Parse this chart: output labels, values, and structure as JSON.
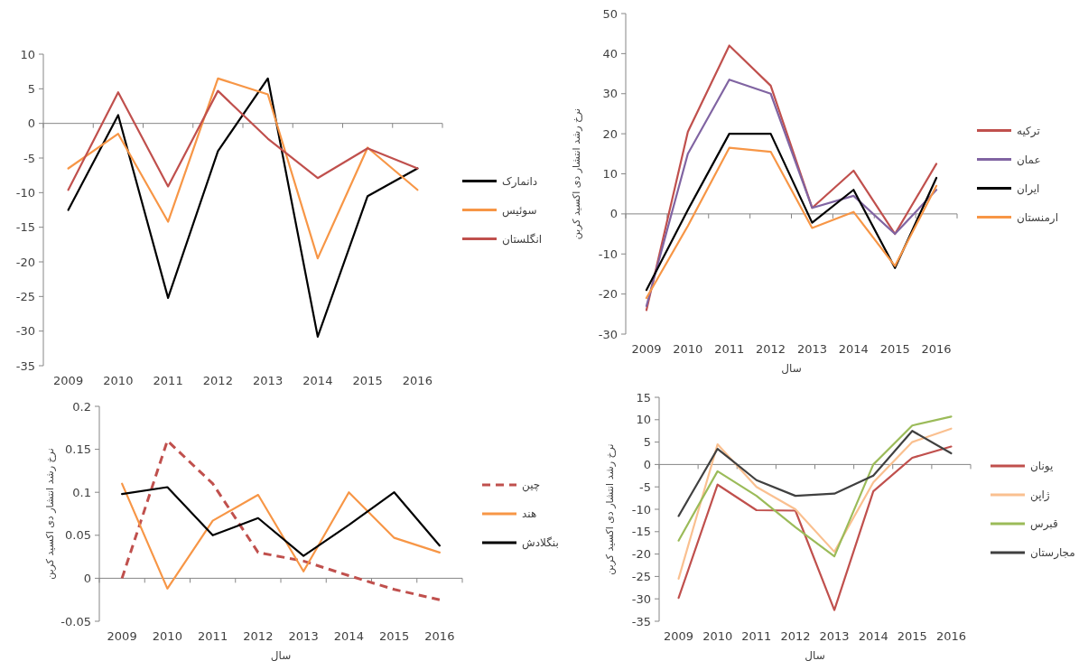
{
  "chart_data": [
    {
      "type": "line",
      "categories": [
        "2009",
        "2010",
        "2011",
        "2012",
        "2013",
        "2014",
        "2015",
        "2016"
      ],
      "ylim": [
        -35,
        10
      ],
      "yticks": [
        -35,
        -30,
        -25,
        -20,
        -15,
        -10,
        -5,
        0,
        5,
        10
      ],
      "legend": "right",
      "series": [
        {
          "name": "دانمارک",
          "color": "#000000",
          "values": [
            -12.5,
            1.2,
            -25.2,
            -4,
            6.5,
            -30.8,
            -10.5,
            -6.5
          ]
        },
        {
          "name": "سوئیس",
          "color": "#f79646",
          "values": [
            -6.5,
            -1.5,
            -14.2,
            6.5,
            4.2,
            -19.5,
            -3.5,
            -9.6
          ]
        },
        {
          "name": "انگلستان",
          "color": "#c0504d",
          "values": [
            -9.6,
            4.5,
            -9.1,
            4.7,
            -2.2,
            -7.9,
            -3.6,
            -6.5
          ]
        }
      ]
    },
    {
      "type": "line",
      "categories": [
        "2009",
        "2010",
        "2011",
        "2012",
        "2013",
        "2014",
        "2015",
        "2016"
      ],
      "xlabel": "سال",
      "ylabel": "نرخ رشد انتشار دی اکسید کربن",
      "ylim": [
        -30,
        50
      ],
      "yticks": [
        -30,
        -20,
        -10,
        0,
        10,
        20,
        30,
        40,
        50
      ],
      "legend": "right",
      "series": [
        {
          "name": "ترکیه",
          "color": "#c0504d",
          "values": [
            -24,
            20.5,
            42,
            32,
            1.5,
            10.8,
            -5,
            12.5
          ]
        },
        {
          "name": "عمان",
          "color": "#8064a2",
          "values": [
            -23,
            15,
            33.5,
            30,
            1.5,
            4.5,
            -5,
            6
          ]
        },
        {
          "name": "ایران",
          "color": "#000000",
          "values": [
            -19,
            1,
            20,
            20,
            -2.2,
            6,
            -13.5,
            9
          ]
        },
        {
          "name": "ارمنستان",
          "color": "#f79646",
          "values": [
            -21,
            -3,
            16.5,
            15.5,
            -3.5,
            0.5,
            -13,
            7
          ]
        }
      ]
    },
    {
      "type": "line",
      "categories": [
        "2009",
        "2010",
        "2011",
        "2012",
        "2013",
        "2014",
        "2015",
        "2016"
      ],
      "xlabel": "سال",
      "ylabel": "نرخ رشد انتشار دی اکسید کربن",
      "ylim": [
        -0.05,
        0.2
      ],
      "yticks": [
        -0.05,
        0,
        0.05,
        0.1,
        0.15,
        0.2
      ],
      "legend": "right",
      "series": [
        {
          "name": "چین",
          "color": "#c0504d",
          "line_style": "dashed",
          "values": [
            0,
            0.16,
            0.11,
            0.03,
            0.02,
            0.003,
            -0.013,
            -0.025
          ]
        },
        {
          "name": "هند",
          "color": "#f79646",
          "values": [
            0.11,
            -0.012,
            0.067,
            0.097,
            0.008,
            0.1,
            0.047,
            0.03
          ]
        },
        {
          "name": "بنگلادش",
          "color": "#000000",
          "values": [
            0.098,
            0.106,
            0.05,
            0.07,
            0.026,
            0.062,
            0.1,
            0.038
          ]
        }
      ]
    },
    {
      "type": "line",
      "categories": [
        "2009",
        "2010",
        "2011",
        "2012",
        "2013",
        "2014",
        "2015",
        "2016"
      ],
      "xlabel": "سال",
      "ylabel": "نرخ رشد انتشار دی اکسید کربن",
      "ylim": [
        -35,
        15
      ],
      "yticks": [
        -35,
        -30,
        -25,
        -20,
        -15,
        -10,
        -5,
        0,
        5,
        10,
        15
      ],
      "legend": "right",
      "series": [
        {
          "name": "یونان",
          "color": "#c0504d",
          "values": [
            -29.8,
            -4.5,
            -10.2,
            -10.3,
            -32.5,
            -6,
            1.5,
            4
          ]
        },
        {
          "name": "ژاپن",
          "color": "#fac090",
          "values": [
            -25.5,
            4.5,
            -5,
            -10,
            -19.5,
            -4,
            5,
            8
          ]
        },
        {
          "name": "قبرس",
          "color": "#9bbb59",
          "values": [
            -17,
            -1.5,
            -7,
            -14,
            -20.5,
            0,
            8.7,
            10.7
          ]
        },
        {
          "name": "مجارستان",
          "color": "#404040",
          "values": [
            -11.5,
            3.5,
            -3.5,
            -7,
            -6.5,
            -2.5,
            7.5,
            2.5
          ]
        }
      ]
    }
  ]
}
